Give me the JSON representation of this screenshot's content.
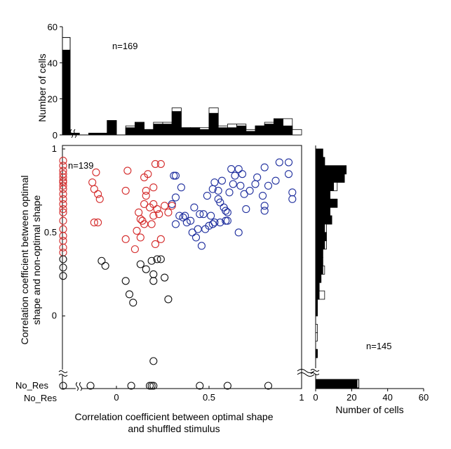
{
  "chart_data": [
    {
      "type": "scatter",
      "xlabel_line1": "Correlation coefficient between optimal shape",
      "xlabel_line2": "and shuffled stimulus",
      "ylabel_line1": "Correlation coefficient between optimal",
      "ylabel_line2": "shape and  non-optimal shape",
      "xlim": [
        -0.25,
        1.0
      ],
      "ylim": [
        -0.3,
        1.0
      ],
      "xticks": [
        {
          "v": 0,
          "label": "0"
        },
        {
          "v": 0.5,
          "label": "0.5"
        },
        {
          "v": 1,
          "label": "1"
        }
      ],
      "yticks": [
        {
          "v": 0,
          "label": "0"
        },
        {
          "v": 0.5,
          "label": "0.5"
        },
        {
          "v": 1,
          "label": "1"
        }
      ],
      "no_res_label_x": "No_Res",
      "no_res_label_y": "No_Res",
      "n_label": "n=139",
      "colors": {
        "red": "#d42a2a",
        "blue": "#1f2f9e",
        "black": "#111111"
      },
      "series": [
        {
          "color_key": "blue",
          "points": [
            [
              0.31,
              0.84
            ],
            [
              0.32,
              0.84
            ],
            [
              0.35,
              0.77
            ],
            [
              0.32,
              0.71
            ],
            [
              0.3,
              0.67
            ],
            [
              0.34,
              0.6
            ],
            [
              0.36,
              0.59
            ],
            [
              0.32,
              0.55
            ],
            [
              0.38,
              0.56
            ],
            [
              0.41,
              0.5
            ],
            [
              0.43,
              0.47
            ],
            [
              0.46,
              0.42
            ],
            [
              0.48,
              0.52
            ],
            [
              0.5,
              0.54
            ],
            [
              0.52,
              0.55
            ],
            [
              0.53,
              0.56
            ],
            [
              0.51,
              0.6
            ],
            [
              0.56,
              0.56
            ],
            [
              0.59,
              0.57
            ],
            [
              0.6,
              0.57
            ],
            [
              0.55,
              0.7
            ],
            [
              0.56,
              0.68
            ],
            [
              0.58,
              0.65
            ],
            [
              0.59,
              0.63
            ],
            [
              0.55,
              0.75
            ],
            [
              0.61,
              0.74
            ],
            [
              0.63,
              0.79
            ],
            [
              0.64,
              0.84
            ],
            [
              0.66,
              0.88
            ],
            [
              0.67,
              0.78
            ],
            [
              0.69,
              0.73
            ],
            [
              0.7,
              0.64
            ],
            [
              0.75,
              0.79
            ],
            [
              0.76,
              0.83
            ],
            [
              0.79,
              0.72
            ],
            [
              0.8,
              0.89
            ],
            [
              0.8,
              0.66
            ],
            [
              0.86,
              0.81
            ],
            [
              0.88,
              0.92
            ],
            [
              0.93,
              0.92
            ],
            [
              0.93,
              0.85
            ],
            [
              0.95,
              0.7
            ],
            [
              0.95,
              0.74
            ],
            [
              0.8,
              0.63
            ],
            [
              0.66,
              0.5
            ],
            [
              0.53,
              0.8
            ],
            [
              0.52,
              0.76
            ],
            [
              0.45,
              0.61
            ],
            [
              0.6,
              0.62
            ],
            [
              0.62,
              0.88
            ],
            [
              0.49,
              0.72
            ],
            [
              0.47,
              0.61
            ],
            [
              0.4,
              0.57
            ],
            [
              0.42,
              0.65
            ],
            [
              0.68,
              0.85
            ],
            [
              0.72,
              0.75
            ],
            [
              0.44,
              0.52
            ],
            [
              0.37,
              0.6
            ],
            [
              0.57,
              0.81
            ],
            [
              0.82,
              0.78
            ]
          ]
        },
        {
          "color_key": "red",
          "points": [
            [
              -0.11,
              0.86
            ],
            [
              -0.13,
              0.8
            ],
            [
              -0.12,
              0.76
            ],
            [
              -0.1,
              0.73
            ],
            [
              -0.09,
              0.7
            ],
            [
              -0.1,
              0.56
            ],
            [
              -0.12,
              0.56
            ],
            [
              0.06,
              0.87
            ],
            [
              0.05,
              0.46
            ],
            [
              0.05,
              0.75
            ],
            [
              0.17,
              0.85
            ],
            [
              0.21,
              0.91
            ],
            [
              0.24,
              0.91
            ],
            [
              0.15,
              0.83
            ],
            [
              0.2,
              0.77
            ],
            [
              0.16,
              0.75
            ],
            [
              0.16,
              0.72
            ],
            [
              0.15,
              0.67
            ],
            [
              0.12,
              0.62
            ],
            [
              0.13,
              0.58
            ],
            [
              0.14,
              0.57
            ],
            [
              0.15,
              0.55
            ],
            [
              0.11,
              0.51
            ],
            [
              0.13,
              0.47
            ],
            [
              0.1,
              0.4
            ],
            [
              0.2,
              0.67
            ],
            [
              0.22,
              0.64
            ],
            [
              0.23,
              0.61
            ],
            [
              0.2,
              0.6
            ],
            [
              0.18,
              0.65
            ],
            [
              0.19,
              0.55
            ],
            [
              0.21,
              0.43
            ],
            [
              0.24,
              0.46
            ],
            [
              0.26,
              0.66
            ],
            [
              0.28,
              0.62
            ],
            [
              0.3,
              0.66
            ]
          ]
        },
        {
          "color_key": "black",
          "points": [
            [
              -0.08,
              0.33
            ],
            [
              -0.06,
              0.3
            ],
            [
              0.13,
              0.31
            ],
            [
              0.16,
              0.28
            ],
            [
              0.19,
              0.33
            ],
            [
              0.22,
              0.34
            ],
            [
              0.24,
              0.34
            ],
            [
              0.2,
              0.25
            ],
            [
              0.26,
              0.23
            ],
            [
              0.28,
              0.1
            ],
            [
              0.05,
              0.21
            ],
            [
              0.07,
              0.13
            ],
            [
              0.09,
              0.08
            ],
            [
              0.2,
              0.21
            ],
            [
              0.2,
              -0.27
            ]
          ]
        }
      ],
      "y_nores_red": [
        0.93,
        0.9,
        0.87,
        0.85,
        0.83,
        0.81,
        0.8,
        0.78,
        0.76,
        0.73,
        0.7,
        0.67,
        0.64,
        0.62,
        0.57,
        0.52,
        0.48,
        0.45,
        0.41,
        0.38
      ],
      "y_nores_black": [
        0.34,
        0.29,
        0.24
      ],
      "x_nores_black": [
        -0.14,
        0.08,
        0.18,
        0.19,
        0.2,
        0.45,
        0.6,
        0.82
      ]
    },
    {
      "type": "bar",
      "orientation": "vertical",
      "ylabel": "Number of cells",
      "ylim": [
        0,
        60
      ],
      "yticks": [
        {
          "v": 0,
          "label": "0"
        },
        {
          "v": 20,
          "label": "20"
        },
        {
          "v": 40,
          "label": "40"
        },
        {
          "v": 60,
          "label": "60"
        }
      ],
      "n_label": "n=169",
      "bin_width": 0.05,
      "nores_filled": 47,
      "nores_total": 54,
      "bins_start": [
        -0.25,
        -0.2,
        -0.15,
        -0.1,
        -0.05,
        0,
        0.05,
        0.1,
        0.15,
        0.2,
        0.25,
        0.3,
        0.35,
        0.4,
        0.45,
        0.5,
        0.55,
        0.6,
        0.65,
        0.7,
        0.75,
        0.8,
        0.85,
        0.9,
        0.95
      ],
      "filled": [
        1,
        0,
        1,
        1,
        8,
        0,
        4,
        7,
        3,
        6,
        6,
        13,
        4,
        4,
        3,
        12,
        4,
        4,
        5,
        2,
        5,
        6,
        9,
        5,
        0
      ],
      "total": [
        1,
        0,
        1,
        1,
        8,
        0,
        5,
        7,
        3,
        7,
        7,
        15,
        4,
        4,
        4,
        15,
        5,
        6,
        6,
        3,
        5,
        7,
        9,
        9,
        3
      ]
    },
    {
      "type": "bar",
      "orientation": "horizontal",
      "xlabel": "Number of cells",
      "xlim": [
        0,
        60
      ],
      "xticks": [
        {
          "v": 0,
          "label": "0"
        },
        {
          "v": 20,
          "label": "20"
        },
        {
          "v": 40,
          "label": "40"
        },
        {
          "v": 60,
          "label": "60"
        }
      ],
      "n_label": "n=145",
      "bin_width": 0.05,
      "nores_filled": 23,
      "nores_total": 24,
      "bins_start": [
        0.95,
        0.9,
        0.85,
        0.8,
        0.75,
        0.7,
        0.65,
        0.6,
        0.55,
        0.5,
        0.45,
        0.4,
        0.35,
        0.3,
        0.25,
        0.2,
        0.15,
        0.1,
        0.05,
        0.0,
        -0.05,
        -0.1,
        -0.15,
        -0.2,
        -0.25,
        -0.3
      ],
      "filled": [
        4,
        5,
        17,
        16,
        10,
        8,
        12,
        8,
        9,
        5,
        6,
        5,
        4,
        4,
        4,
        3,
        2,
        2,
        1,
        1,
        0,
        0,
        0,
        0,
        1,
        0
      ],
      "total": [
        4,
        5,
        17,
        16,
        12,
        8,
        12,
        8,
        9,
        6,
        6,
        6,
        4,
        4,
        5,
        3,
        2,
        5,
        1,
        1,
        0,
        1,
        1,
        0,
        1,
        0
      ]
    }
  ]
}
